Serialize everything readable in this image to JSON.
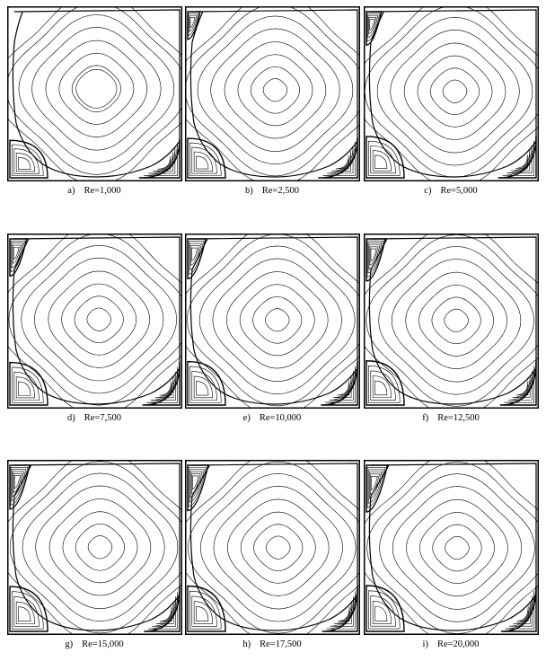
{
  "panels": [
    {
      "id": "a",
      "label": "a)",
      "caption": "Re=1,000",
      "re": 1000
    },
    {
      "id": "b",
      "label": "b)",
      "caption": "Re=2,500",
      "re": 2500
    },
    {
      "id": "c",
      "label": "c)",
      "caption": "Re=5,000",
      "re": 5000
    },
    {
      "id": "d",
      "label": "d)",
      "caption": "Re=7,500",
      "re": 7500
    },
    {
      "id": "e",
      "label": "e)",
      "caption": "Re=10,000",
      "re": 10000
    },
    {
      "id": "f",
      "label": "f)",
      "caption": "Re=12,500",
      "re": 12500
    },
    {
      "id": "g",
      "label": "g)",
      "caption": "Re=15,000",
      "re": 15000
    },
    {
      "id": "h",
      "label": "h)",
      "caption": "Re=17,500",
      "re": 17500
    },
    {
      "id": "i",
      "label": "i)",
      "caption": "Re=20,000",
      "re": 20000
    }
  ],
  "colors": {
    "line": "#000000",
    "background": "#ffffff"
  }
}
